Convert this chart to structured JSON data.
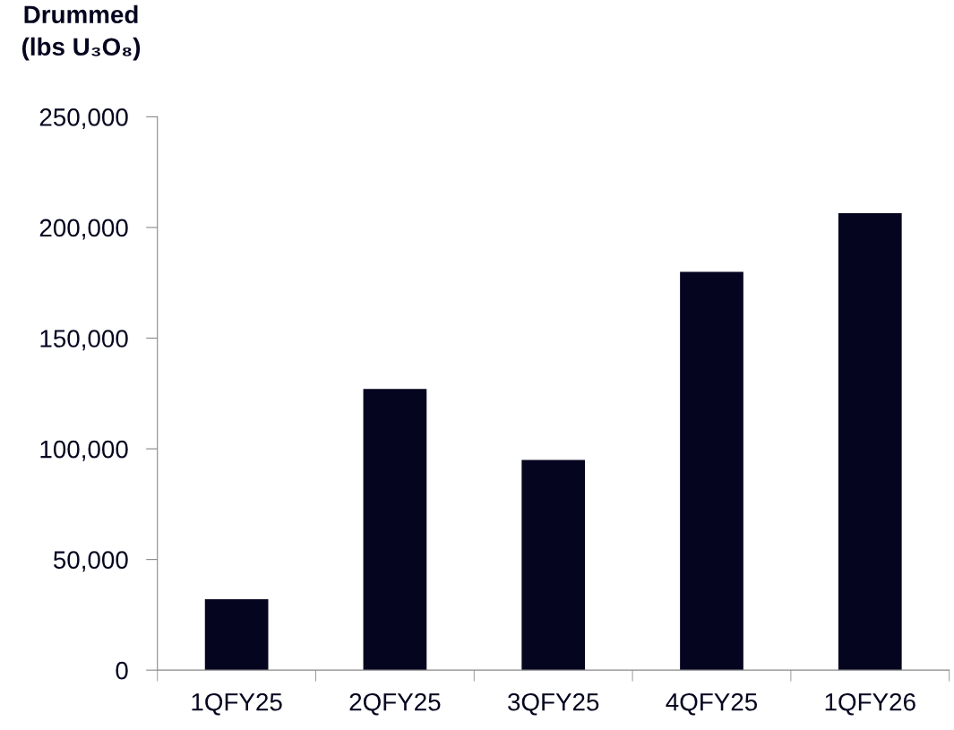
{
  "chart_data": {
    "type": "bar",
    "ylabel": "Drummed\n(lbs U₃O₈)",
    "categories": [
      "1QFY25",
      "2QFY25",
      "3QFY25",
      "4QFY25",
      "1QFY26"
    ],
    "values": [
      32000,
      127000,
      95000,
      180000,
      206500
    ],
    "color": "#05051f",
    "ylim": [
      0,
      250000
    ],
    "yticks": [
      {
        "value": 0,
        "label": "0"
      },
      {
        "value": 50000,
        "label": "50,000"
      },
      {
        "value": 100000,
        "label": "100,000"
      },
      {
        "value": 150000,
        "label": "150,000"
      },
      {
        "value": 200000,
        "label": "200,000"
      },
      {
        "value": 250000,
        "label": "250,000"
      }
    ],
    "grid": false,
    "legend": false
  }
}
